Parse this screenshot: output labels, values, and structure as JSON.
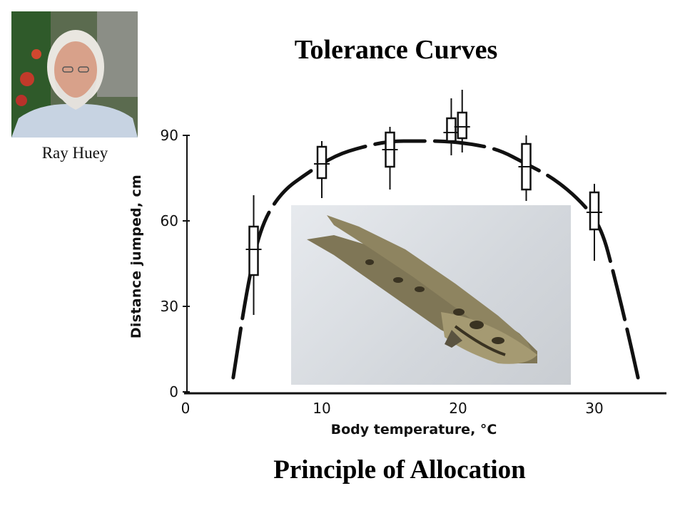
{
  "slide": {
    "title": "Tolerance Curves",
    "footer": "Principle of Allocation"
  },
  "photo": {
    "caption": "Ray Huey"
  },
  "chart_data": {
    "type": "line",
    "xlabel": "Body temperature, °C",
    "ylabel": "Distance jumped, cm",
    "xlim": [
      0,
      35
    ],
    "ylim": [
      0,
      90
    ],
    "x_ticks": [
      0,
      10,
      20,
      30
    ],
    "y_ticks": [
      0,
      30,
      60,
      90
    ],
    "curve": {
      "x": [
        3.5,
        4.5,
        5.5,
        7,
        9,
        11,
        13,
        15,
        17,
        19,
        21,
        23,
        25,
        27,
        29,
        30.5,
        31.5,
        32.5,
        33.2
      ],
      "y": [
        5,
        36,
        58,
        70,
        77,
        83,
        86,
        88,
        88,
        88,
        87,
        85,
        80,
        75,
        67,
        58,
        40,
        20,
        5
      ]
    },
    "box_plots": [
      {
        "x": 5,
        "median": 50,
        "q1": 41,
        "q3": 58,
        "min": 27,
        "max": 69
      },
      {
        "x": 10,
        "median": 80,
        "q1": 75,
        "q3": 86,
        "min": 68,
        "max": 88
      },
      {
        "x": 15,
        "median": 85,
        "q1": 79,
        "q3": 91,
        "min": 71,
        "max": 93
      },
      {
        "x": 19.5,
        "median": 91,
        "q1": 88,
        "q3": 96,
        "min": 83,
        "max": 103
      },
      {
        "x": 20.3,
        "median": 93,
        "q1": 89,
        "q3": 98,
        "min": 84,
        "max": 106
      },
      {
        "x": 25,
        "median": 79,
        "q1": 71,
        "q3": 87,
        "min": 67,
        "max": 90
      },
      {
        "x": 30,
        "median": 63,
        "q1": 57,
        "q3": 70,
        "min": 46,
        "max": 73
      }
    ],
    "grid": false,
    "legend": "none"
  }
}
